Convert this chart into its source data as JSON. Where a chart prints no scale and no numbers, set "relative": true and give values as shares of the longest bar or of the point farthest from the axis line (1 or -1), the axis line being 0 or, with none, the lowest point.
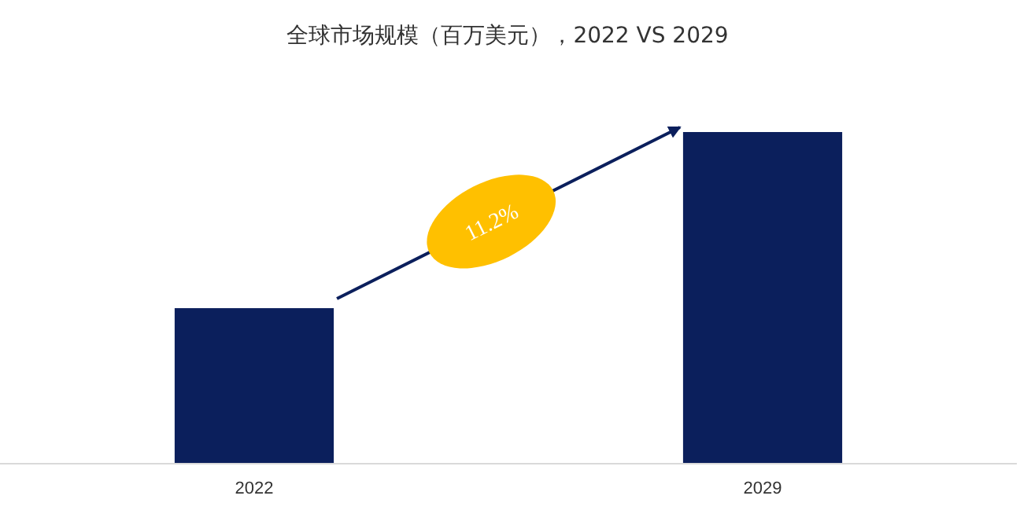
{
  "chart_data": {
    "type": "bar",
    "title": "全球市场规模（百万美元），2022 VS 2029",
    "categories": [
      "2022",
      "2029"
    ],
    "values": [
      0.469,
      1
    ],
    "color": "#0b1f5c",
    "relative": true,
    "annotations": [
      "11.2%"
    ]
  }
}
